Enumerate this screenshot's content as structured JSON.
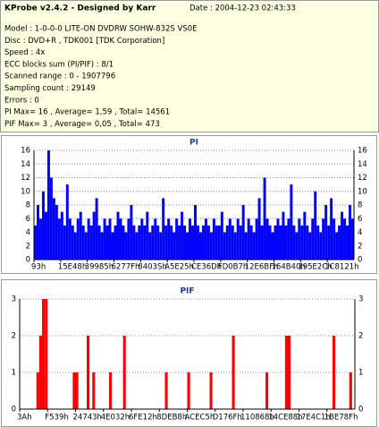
{
  "header": {
    "title": "KProbe v2.4.2 - Designed by Karr",
    "date": "Date : 2004-12-23 02:43:33"
  },
  "info": [
    "Model : 1-0-0-0 LITE-ON DVDRW SOHW-832S  VS0E",
    "Disc : DVD+R , TDK001 [TDK Corporation]",
    "Speed : 4x",
    "ECC blocks sum (PI/PIF) : 8/1",
    "Scanned range : 0 - 1907796",
    "Sampling count : 29149",
    "Errors : 0",
    "PI Max= 16 , Average= 1,59 , Total= 14561",
    "PIF Max= 3 , Average= 0,05 , Total= 473"
  ],
  "chart_data": [
    {
      "type": "bar",
      "title": "PI",
      "color": "#0000ff",
      "grid": true,
      "values": [
        5,
        8,
        6,
        10,
        7,
        16,
        12,
        9,
        8,
        6,
        7,
        5,
        11,
        6,
        5,
        4,
        6,
        7,
        5,
        4,
        6,
        5,
        7,
        9,
        5,
        4,
        6,
        5,
        6,
        4,
        5,
        7,
        6,
        5,
        4,
        6,
        8,
        5,
        4,
        5,
        6,
        5,
        7,
        4,
        5,
        6,
        5,
        4,
        9,
        5,
        6,
        5,
        4,
        6,
        5,
        7,
        5,
        4,
        6,
        5,
        8,
        5,
        4,
        5,
        6,
        5,
        4,
        6,
        5,
        5,
        7,
        4,
        5,
        6,
        5,
        4,
        6,
        5,
        8,
        4,
        6,
        5,
        4,
        6,
        9,
        5,
        12,
        6,
        5,
        4,
        5,
        6,
        5,
        7,
        5,
        6,
        11,
        5,
        4,
        6,
        5,
        7,
        5,
        4,
        6,
        10,
        5,
        4,
        6,
        8,
        5,
        9,
        6,
        4,
        5,
        7,
        6,
        5,
        8,
        6
      ],
      "xlim": [
        0,
        120
      ],
      "ylim": [
        0,
        16
      ],
      "yticks": [
        0,
        2,
        4,
        6,
        8,
        10,
        12,
        14,
        16
      ],
      "xticks": [
        {
          "value": 0,
          "label": "93h"
        },
        {
          "value": 10,
          "label": "15E48h"
        },
        {
          "value": 20,
          "label": "39985h"
        },
        {
          "value": 30,
          "label": "6277Fh"
        },
        {
          "value": 40,
          "label": "8403Sh"
        },
        {
          "value": 50,
          "label": "A5E25h"
        },
        {
          "value": 60,
          "label": "CE36Dh"
        },
        {
          "value": 70,
          "label": "FD0B7h"
        },
        {
          "value": 80,
          "label": "12E6BFh"
        },
        {
          "value": 90,
          "label": "164B40h"
        },
        {
          "value": 100,
          "label": "195E2Ch"
        },
        {
          "value": 110,
          "label": "1C8121h"
        }
      ]
    },
    {
      "type": "bar",
      "title": "PIF",
      "color": "#ff0000",
      "grid": true,
      "values": [
        0,
        0,
        0,
        0,
        0,
        0,
        1,
        2,
        3,
        3,
        0,
        0,
        0,
        0,
        0,
        0,
        0,
        0,
        0,
        1,
        1,
        0,
        0,
        0,
        2,
        0,
        1,
        0,
        0,
        0,
        0,
        0,
        1,
        0,
        0,
        0,
        0,
        2,
        0,
        0,
        0,
        0,
        0,
        0,
        0,
        0,
        0,
        0,
        0,
        0,
        0,
        0,
        1,
        0,
        0,
        0,
        0,
        0,
        0,
        0,
        1,
        0,
        0,
        0,
        0,
        0,
        0,
        0,
        1,
        0,
        0,
        0,
        0,
        0,
        0,
        0,
        2,
        0,
        0,
        0,
        0,
        0,
        0,
        0,
        0,
        0,
        0,
        0,
        1,
        0,
        0,
        0,
        0,
        0,
        0,
        2,
        2,
        0,
        0,
        0,
        0,
        0,
        0,
        0,
        0,
        0,
        0,
        0,
        0,
        0,
        0,
        0,
        2,
        0,
        0,
        0,
        0,
        0,
        1,
        0
      ],
      "xlim": [
        0,
        120
      ],
      "ylim": [
        0,
        3
      ],
      "yticks": [
        0,
        1,
        2,
        3
      ],
      "xticks": [
        {
          "value": 0,
          "label": "3Ah"
        },
        {
          "value": 10,
          "label": "F539h"
        },
        {
          "value": 20,
          "label": "24743h"
        },
        {
          "value": 30,
          "label": "4E032h"
        },
        {
          "value": 40,
          "label": "6FE12h"
        },
        {
          "value": 50,
          "label": "8DEB8h"
        },
        {
          "value": 60,
          "label": "ACEC5h"
        },
        {
          "value": 70,
          "label": "D176Fh"
        },
        {
          "value": 80,
          "label": "110868h"
        },
        {
          "value": 90,
          "label": "14CE88h"
        },
        {
          "value": 100,
          "label": "17E4C1h"
        },
        {
          "value": 110,
          "label": "1BE78Fh"
        }
      ]
    }
  ]
}
